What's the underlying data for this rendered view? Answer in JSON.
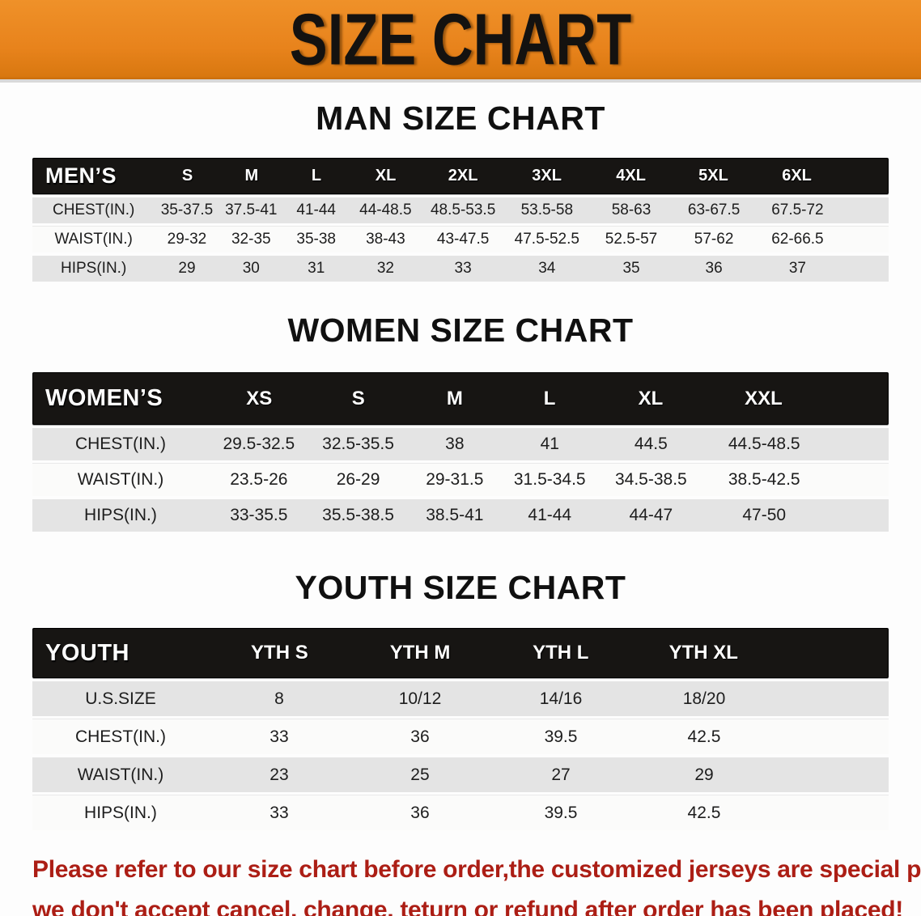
{
  "banner": {
    "title": "SIZE CHART",
    "bg_color": "#e8831c",
    "text_color": "#141210"
  },
  "colors": {
    "table_header_bg": "#171513",
    "table_header_text": "#ffffff",
    "row_stripe_gray": "#e4e4e4",
    "row_stripe_white": "#fbfbfa",
    "disclaimer_red": "#ac1e15"
  },
  "sections": [
    {
      "heading": "MAN SIZE CHART",
      "table": {
        "header_label": "MEN’S",
        "columns": [
          "S",
          "M",
          "L",
          "XL",
          "2XL",
          "3XL",
          "4XL",
          "5XL",
          "6XL"
        ],
        "rows": [
          {
            "label": "CHEST(IN.)",
            "values": [
              "35-37.5",
              "37.5-41",
              "41-44",
              "44-48.5",
              "48.5-53.5",
              "53.5-58",
              "58-63",
              "63-67.5",
              "67.5-72"
            ]
          },
          {
            "label": "WAIST(IN.)",
            "values": [
              "29-32",
              "32-35",
              "35-38",
              "38-43",
              "43-47.5",
              "47.5-52.5",
              "52.5-57",
              "57-62",
              "62-66.5"
            ]
          },
          {
            "label": "HIPS(IN.)",
            "values": [
              "29",
              "30",
              "31",
              "32",
              "33",
              "34",
              "35",
              "36",
              "37"
            ]
          }
        ]
      }
    },
    {
      "heading": "WOMEN SIZE CHART",
      "table": {
        "header_label": "WOMEN’S",
        "columns": [
          "XS",
          "S",
          "M",
          "L",
          "XL",
          "XXL"
        ],
        "rows": [
          {
            "label": "CHEST(IN.)",
            "values": [
              "29.5-32.5",
              "32.5-35.5",
              "38",
              "41",
              "44.5",
              "44.5-48.5"
            ]
          },
          {
            "label": "WAIST(IN.)",
            "values": [
              "23.5-26",
              "26-29",
              "29-31.5",
              "31.5-34.5",
              "34.5-38.5",
              "38.5-42.5"
            ]
          },
          {
            "label": "HIPS(IN.)",
            "values": [
              "33-35.5",
              "35.5-38.5",
              "38.5-41",
              "41-44",
              "44-47",
              "47-50"
            ]
          }
        ]
      }
    },
    {
      "heading": "YOUTH SIZE CHART",
      "table": {
        "header_label": "YOUTH",
        "columns": [
          "YTH S",
          "YTH M",
          "YTH L",
          "YTH XL"
        ],
        "rows": [
          {
            "label": "U.S.SIZE",
            "values": [
              "8",
              "10/12",
              "14/16",
              "18/20"
            ]
          },
          {
            "label": "CHEST(IN.)",
            "values": [
              "33",
              "36",
              "39.5",
              "42.5"
            ]
          },
          {
            "label": "WAIST(IN.)",
            "values": [
              "23",
              "25",
              "27",
              "29"
            ]
          },
          {
            "label": "HIPS(IN.)",
            "values": [
              "33",
              "36",
              "39.5",
              "42.5"
            ]
          }
        ]
      }
    }
  ],
  "disclaimer": {
    "line1": "Please refer to our size chart before order,the customized jerseys are special products,",
    "line2": "we don't accept cancel, change, teturn or refund after order has been placed!"
  }
}
